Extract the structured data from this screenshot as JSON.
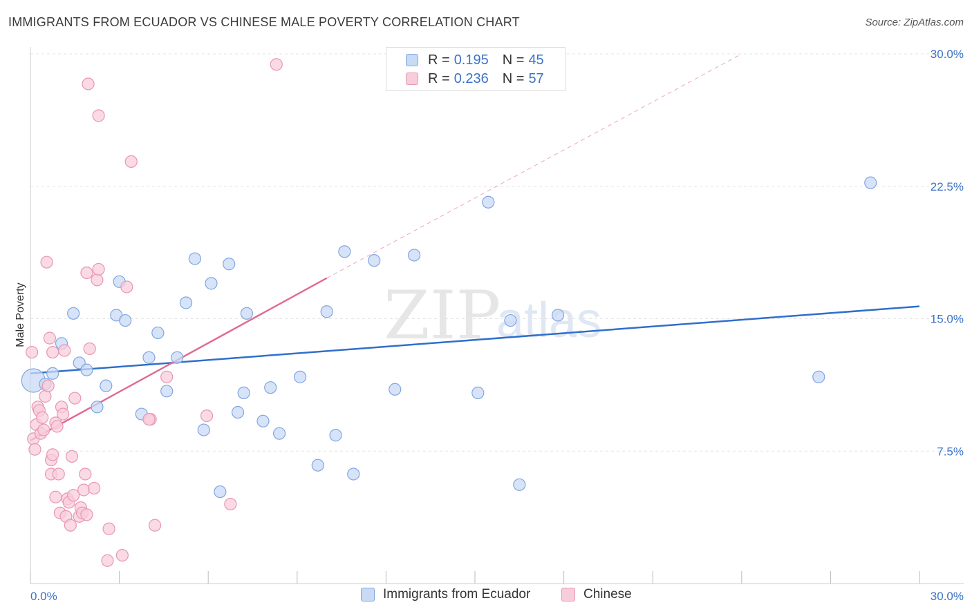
{
  "title": "IMMIGRANTS FROM ECUADOR VS CHINESE MALE POVERTY CORRELATION CHART",
  "source": "Source: ZipAtlas.com",
  "watermark": {
    "zip": "ZIP",
    "atlas": "atlas"
  },
  "colors": {
    "ecuador_fill": "#c9daf5",
    "ecuador_stroke": "#7fa6e0",
    "ecuador_line": "#2f6fcc",
    "chinese_fill": "#f8cddb",
    "chinese_stroke": "#e896b2",
    "chinese_line": "#e06a93",
    "grid": "#e3e3e3",
    "tick_label": "#3b73c6"
  },
  "legend": {
    "rows": [
      {
        "r_label": "R =",
        "r_value": "0.195",
        "n_label": "N =",
        "n_value": "45"
      },
      {
        "r_label": "R =",
        "r_value": "0.236",
        "n_label": "N =",
        "n_value": "57"
      }
    ]
  },
  "bottom_legend": [
    "Immigrants from Ecuador",
    "Chinese"
  ],
  "chart_data": {
    "type": "scatter",
    "title": "IMMIGRANTS FROM ECUADOR VS CHINESE MALE POVERTY CORRELATION CHART",
    "xlabel": "",
    "ylabel": "Male Poverty",
    "xlim": [
      0,
      30
    ],
    "ylim": [
      0,
      30
    ],
    "x_tick_labels": [
      "0.0%",
      "30.0%"
    ],
    "y_ticks": [
      7.5,
      15.0,
      22.5,
      30.0
    ],
    "y_tick_labels": [
      "7.5%",
      "15.0%",
      "22.5%",
      "30.0%"
    ],
    "grid": true,
    "legend_position": "top-center",
    "series": [
      {
        "name": "Immigrants from Ecuador",
        "r": 0.195,
        "n": 45,
        "trend": {
          "x": [
            0,
            30
          ],
          "y": [
            11.9,
            15.7
          ],
          "dashed_extension": false
        },
        "points": [
          {
            "x": 0.1,
            "y": 11.5,
            "big": true
          },
          {
            "x": 0.5,
            "y": 11.3
          },
          {
            "x": 0.75,
            "y": 11.9
          },
          {
            "x": 1.05,
            "y": 13.6
          },
          {
            "x": 1.45,
            "y": 15.3
          },
          {
            "x": 1.65,
            "y": 12.5
          },
          {
            "x": 1.9,
            "y": 12.1
          },
          {
            "x": 2.25,
            "y": 10.0
          },
          {
            "x": 2.55,
            "y": 11.2
          },
          {
            "x": 2.9,
            "y": 15.2
          },
          {
            "x": 3.0,
            "y": 17.1
          },
          {
            "x": 3.2,
            "y": 14.9
          },
          {
            "x": 3.75,
            "y": 9.6
          },
          {
            "x": 4.0,
            "y": 12.8
          },
          {
            "x": 4.3,
            "y": 14.2
          },
          {
            "x": 4.6,
            "y": 10.9
          },
          {
            "x": 4.95,
            "y": 12.8
          },
          {
            "x": 5.25,
            "y": 15.9
          },
          {
            "x": 5.55,
            "y": 18.4
          },
          {
            "x": 5.85,
            "y": 8.7
          },
          {
            "x": 6.1,
            "y": 17.0
          },
          {
            "x": 6.4,
            "y": 5.2
          },
          {
            "x": 6.7,
            "y": 18.1
          },
          {
            "x": 7.0,
            "y": 9.7
          },
          {
            "x": 7.3,
            "y": 15.3
          },
          {
            "x": 7.2,
            "y": 10.8
          },
          {
            "x": 7.85,
            "y": 9.2
          },
          {
            "x": 8.1,
            "y": 11.1
          },
          {
            "x": 8.4,
            "y": 8.5
          },
          {
            "x": 9.1,
            "y": 11.7
          },
          {
            "x": 9.7,
            "y": 6.7
          },
          {
            "x": 10.0,
            "y": 15.4
          },
          {
            "x": 10.3,
            "y": 8.4
          },
          {
            "x": 10.6,
            "y": 18.8
          },
          {
            "x": 10.9,
            "y": 6.2
          },
          {
            "x": 11.6,
            "y": 18.3
          },
          {
            "x": 12.3,
            "y": 11.0
          },
          {
            "x": 12.95,
            "y": 18.6
          },
          {
            "x": 15.1,
            "y": 10.8
          },
          {
            "x": 15.45,
            "y": 21.6
          },
          {
            "x": 16.2,
            "y": 14.9
          },
          {
            "x": 16.5,
            "y": 5.6
          },
          {
            "x": 17.8,
            "y": 15.2
          },
          {
            "x": 26.6,
            "y": 11.7
          },
          {
            "x": 28.35,
            "y": 22.7
          }
        ]
      },
      {
        "name": "Chinese",
        "r": 0.236,
        "n": 57,
        "trend": {
          "x": [
            0,
            10.0
          ],
          "y": [
            8.1,
            17.3
          ],
          "dashed_extension_to": [
            24.0,
            30.0
          ]
        },
        "points": [
          {
            "x": 0.05,
            "y": 13.1
          },
          {
            "x": 0.1,
            "y": 8.2
          },
          {
            "x": 0.15,
            "y": 7.6
          },
          {
            "x": 0.2,
            "y": 9.0
          },
          {
            "x": 0.25,
            "y": 10.0
          },
          {
            "x": 0.3,
            "y": 9.8
          },
          {
            "x": 0.35,
            "y": 8.5
          },
          {
            "x": 0.4,
            "y": 9.4
          },
          {
            "x": 0.45,
            "y": 8.7
          },
          {
            "x": 0.5,
            "y": 10.6
          },
          {
            "x": 0.55,
            "y": 18.2
          },
          {
            "x": 0.6,
            "y": 11.2
          },
          {
            "x": 0.65,
            "y": 13.9
          },
          {
            "x": 0.7,
            "y": 6.2
          },
          {
            "x": 0.7,
            "y": 7.0
          },
          {
            "x": 0.75,
            "y": 7.3
          },
          {
            "x": 0.75,
            "y": 13.1
          },
          {
            "x": 0.85,
            "y": 9.1
          },
          {
            "x": 0.85,
            "y": 4.9
          },
          {
            "x": 0.9,
            "y": 8.9
          },
          {
            "x": 0.95,
            "y": 6.2
          },
          {
            "x": 1.0,
            "y": 4.0
          },
          {
            "x": 1.05,
            "y": 10.0
          },
          {
            "x": 1.1,
            "y": 9.6
          },
          {
            "x": 1.15,
            "y": 13.2
          },
          {
            "x": 1.2,
            "y": 3.8
          },
          {
            "x": 1.25,
            "y": 4.8
          },
          {
            "x": 1.3,
            "y": 4.6
          },
          {
            "x": 1.35,
            "y": 3.3
          },
          {
            "x": 1.4,
            "y": 7.2
          },
          {
            "x": 1.45,
            "y": 5.0
          },
          {
            "x": 1.5,
            "y": 10.5
          },
          {
            "x": 1.65,
            "y": 3.8
          },
          {
            "x": 1.7,
            "y": 4.3
          },
          {
            "x": 1.75,
            "y": 4.0
          },
          {
            "x": 1.8,
            "y": 5.3
          },
          {
            "x": 1.85,
            "y": 6.2
          },
          {
            "x": 1.9,
            "y": 3.9
          },
          {
            "x": 1.9,
            "y": 17.6
          },
          {
            "x": 1.95,
            "y": 28.3
          },
          {
            "x": 2.0,
            "y": 13.3
          },
          {
            "x": 2.15,
            "y": 5.4
          },
          {
            "x": 2.25,
            "y": 17.2
          },
          {
            "x": 2.3,
            "y": 26.5
          },
          {
            "x": 2.3,
            "y": 17.8
          },
          {
            "x": 2.6,
            "y": 1.3
          },
          {
            "x": 2.65,
            "y": 3.1
          },
          {
            "x": 3.1,
            "y": 1.6
          },
          {
            "x": 3.25,
            "y": 16.8
          },
          {
            "x": 3.4,
            "y": 23.9
          },
          {
            "x": 4.05,
            "y": 9.3
          },
          {
            "x": 4.2,
            "y": 3.3
          },
          {
            "x": 4.6,
            "y": 11.7
          },
          {
            "x": 5.95,
            "y": 9.5
          },
          {
            "x": 6.75,
            "y": 4.5
          },
          {
            "x": 8.3,
            "y": 29.4
          },
          {
            "x": 4.0,
            "y": 9.3
          }
        ]
      }
    ]
  }
}
